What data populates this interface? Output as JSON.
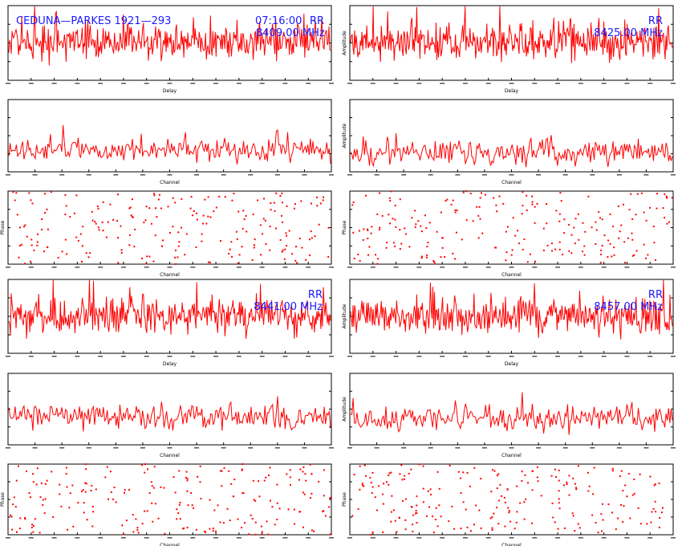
{
  "header": {
    "baseline": "CEDUNA—PARKES 1921—293",
    "time": "07:16:00",
    "pol": "RR"
  },
  "bands": [
    {
      "pol": "RR",
      "freq": "8409.00 MHz"
    },
    {
      "pol": "RR",
      "freq": "8425.00 MHz"
    },
    {
      "pol": "RR",
      "freq": "8441.00 MHz"
    },
    {
      "pol": "RR",
      "freq": "8457.00 MHz"
    }
  ],
  "axis_labels": {
    "delay": "Delay",
    "channel": "Channel",
    "amplitude": "Amplitude",
    "phase": "Phase"
  },
  "colors": {
    "data": "#ff0000",
    "annotation": "#1a1aff",
    "axes": "#000000"
  },
  "chart_data": [
    {
      "type": "line",
      "band": 0,
      "panel": "delay",
      "xlabel": "Delay",
      "ylabel": "",
      "ylim": [
        0,
        6
      ],
      "series": [
        {
          "stats": {
            "mean": 3.1,
            "spread": 0.9,
            "points": 400
          }
        }
      ]
    },
    {
      "type": "line",
      "band": 1,
      "panel": "delay",
      "xlabel": "Delay",
      "ylabel": "Amplitude",
      "ylim": [
        0,
        6
      ],
      "series": [
        {
          "stats": {
            "mean": 3.1,
            "spread": 0.9,
            "points": 400
          }
        }
      ]
    },
    {
      "type": "line",
      "band": 0,
      "panel": "amplitude",
      "xlabel": "Channel",
      "ylabel": "",
      "ylim": [
        0,
        6
      ],
      "series": [
        {
          "stats": {
            "mean": 1.8,
            "spread": 0.6,
            "points": 256
          }
        }
      ]
    },
    {
      "type": "line",
      "band": 1,
      "panel": "amplitude",
      "xlabel": "Channel",
      "ylabel": "Amplitude",
      "ylim": [
        0,
        6
      ],
      "series": [
        {
          "stats": {
            "mean": 1.6,
            "spread": 0.6,
            "points": 256
          }
        }
      ]
    },
    {
      "type": "scatter",
      "band": 0,
      "panel": "phase",
      "xlabel": "Channel",
      "ylabel": "Phase",
      "ylim": [
        -180,
        180
      ],
      "series": [
        {
          "stats": {
            "points": 220
          }
        }
      ]
    },
    {
      "type": "scatter",
      "band": 1,
      "panel": "phase",
      "xlabel": "Channel",
      "ylabel": "Phase",
      "ylim": [
        -180,
        180
      ],
      "series": [
        {
          "stats": {
            "points": 220
          }
        }
      ]
    },
    {
      "type": "line",
      "band": 2,
      "panel": "delay",
      "xlabel": "Delay",
      "ylabel": "",
      "ylim": [
        0,
        6
      ],
      "series": [
        {
          "stats": {
            "mean": 3.0,
            "spread": 0.9,
            "points": 400
          }
        }
      ]
    },
    {
      "type": "line",
      "band": 3,
      "panel": "delay",
      "xlabel": "Delay",
      "ylabel": "Amplitude",
      "ylim": [
        0,
        6
      ],
      "series": [
        {
          "stats": {
            "mean": 3.0,
            "spread": 0.9,
            "points": 400
          }
        }
      ]
    },
    {
      "type": "line",
      "band": 2,
      "panel": "amplitude",
      "xlabel": "Channel",
      "ylabel": "",
      "ylim": [
        0,
        6
      ],
      "series": [
        {
          "stats": {
            "mean": 2.3,
            "spread": 0.6,
            "points": 256
          }
        }
      ]
    },
    {
      "type": "line",
      "band": 3,
      "panel": "amplitude",
      "xlabel": "Channel",
      "ylabel": "Amplitude",
      "ylim": [
        0,
        6
      ],
      "series": [
        {
          "stats": {
            "mean": 2.2,
            "spread": 0.6,
            "points": 256
          }
        }
      ]
    },
    {
      "type": "scatter",
      "band": 2,
      "panel": "phase",
      "xlabel": "Channel",
      "ylabel": "Phase",
      "ylim": [
        -180,
        180
      ],
      "series": [
        {
          "stats": {
            "points": 220
          }
        }
      ]
    },
    {
      "type": "scatter",
      "band": 3,
      "panel": "phase",
      "xlabel": "Channel",
      "ylabel": "Phase",
      "ylim": [
        -180,
        180
      ],
      "series": [
        {
          "stats": {
            "points": 220
          }
        }
      ]
    }
  ]
}
